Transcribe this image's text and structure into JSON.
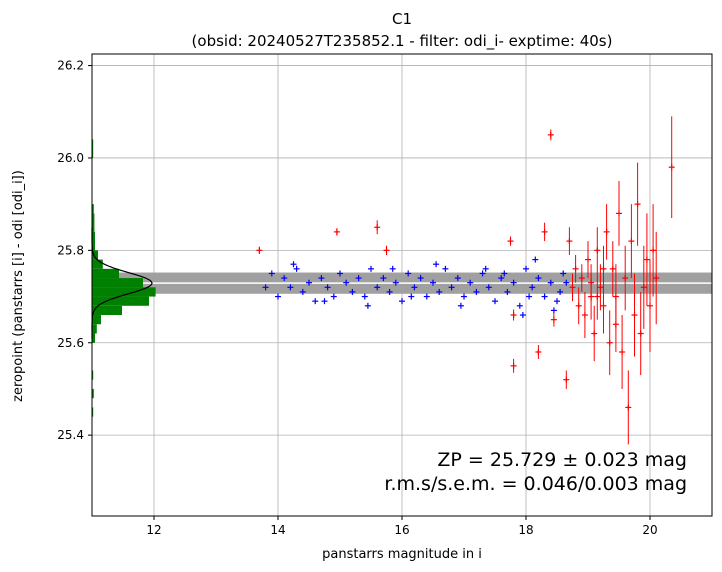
{
  "chart_data": {
    "type": "scatter",
    "title": "C1",
    "subtitle": "(obsid: 20240527T235852.1 - filter: odi_i- exptime: 40s)",
    "xlabel": "panstarrs magnitude in i",
    "ylabel": "zeropoint (panstarrs [i] - odi [odi_i])",
    "xlim": [
      11.0,
      21.0
    ],
    "ylim": [
      25.225,
      26.225
    ],
    "xticks": [
      "12",
      "14",
      "16",
      "18",
      "20"
    ],
    "yticks": [
      "25.4",
      "25.6",
      "25.8",
      "26.0",
      "26.2"
    ],
    "grid": true,
    "zp": 25.729,
    "zp_err": 0.023,
    "annotation_line1": "ZP = 25.729 ± 0.023 mag",
    "annotation_line2": "r.m.s/s.e.m. = 0.046/0.003 mag",
    "band": {
      "y_low": 25.706,
      "y_high": 25.752,
      "color": "#a0a0a0"
    },
    "series": [
      {
        "color": "#0000ff",
        "marker": "plus",
        "points": [
          [
            13.8,
            25.72
          ],
          [
            13.9,
            25.75
          ],
          [
            14.0,
            25.7
          ],
          [
            14.1,
            25.74
          ],
          [
            14.2,
            25.72
          ],
          [
            14.3,
            25.76
          ],
          [
            14.4,
            25.71
          ],
          [
            14.5,
            25.73
          ],
          [
            14.6,
            25.69
          ],
          [
            14.7,
            25.74
          ],
          [
            14.8,
            25.72
          ],
          [
            14.9,
            25.7
          ],
          [
            15.0,
            25.75
          ],
          [
            15.1,
            25.73
          ],
          [
            15.2,
            25.71
          ],
          [
            15.3,
            25.74
          ],
          [
            15.4,
            25.7
          ],
          [
            15.5,
            25.76
          ],
          [
            15.6,
            25.72
          ],
          [
            15.7,
            25.74
          ],
          [
            15.8,
            25.71
          ],
          [
            15.9,
            25.73
          ],
          [
            16.0,
            25.69
          ],
          [
            16.1,
            25.75
          ],
          [
            16.2,
            25.72
          ],
          [
            16.3,
            25.74
          ],
          [
            16.4,
            25.7
          ],
          [
            16.5,
            25.73
          ],
          [
            16.6,
            25.71
          ],
          [
            16.7,
            25.76
          ],
          [
            16.8,
            25.72
          ],
          [
            16.9,
            25.74
          ],
          [
            17.0,
            25.7
          ],
          [
            17.1,
            25.73
          ],
          [
            17.2,
            25.71
          ],
          [
            17.3,
            25.75
          ],
          [
            17.4,
            25.72
          ],
          [
            17.5,
            25.69
          ],
          [
            17.6,
            25.74
          ],
          [
            17.7,
            25.71
          ],
          [
            17.8,
            25.73
          ],
          [
            17.9,
            25.68
          ],
          [
            18.0,
            25.76
          ],
          [
            18.1,
            25.72
          ],
          [
            18.2,
            25.74
          ],
          [
            18.3,
            25.7
          ],
          [
            18.4,
            25.73
          ],
          [
            18.5,
            25.69
          ],
          [
            18.6,
            25.75
          ],
          [
            14.25,
            25.77
          ],
          [
            15.85,
            25.76
          ],
          [
            16.55,
            25.77
          ],
          [
            17.35,
            25.76
          ],
          [
            18.15,
            25.78
          ],
          [
            18.45,
            25.67
          ],
          [
            17.95,
            25.66
          ],
          [
            16.95,
            25.68
          ],
          [
            15.45,
            25.68
          ],
          [
            14.75,
            25.69
          ],
          [
            18.55,
            25.71
          ],
          [
            18.65,
            25.73
          ],
          [
            18.05,
            25.7
          ],
          [
            17.65,
            25.75
          ],
          [
            16.15,
            25.7
          ]
        ]
      },
      {
        "color": "#ff0000",
        "marker": "plus-errorbar",
        "points": [
          [
            13.7,
            25.8,
            0.008
          ],
          [
            14.95,
            25.84,
            0.008
          ],
          [
            15.6,
            25.85,
            0.015
          ],
          [
            15.75,
            25.8,
            0.01
          ],
          [
            17.75,
            25.82,
            0.01
          ],
          [
            18.4,
            26.05,
            0.012
          ],
          [
            18.3,
            25.84,
            0.02
          ],
          [
            18.2,
            25.58,
            0.015
          ],
          [
            17.8,
            25.55,
            0.015
          ],
          [
            17.8,
            25.66,
            0.012
          ],
          [
            18.45,
            25.65,
            0.015
          ],
          [
            18.65,
            25.52,
            0.02
          ],
          [
            18.7,
            25.82,
            0.03
          ],
          [
            18.75,
            25.72,
            0.03
          ],
          [
            18.8,
            25.76,
            0.03
          ],
          [
            18.85,
            25.68,
            0.04
          ],
          [
            18.9,
            25.74,
            0.03
          ],
          [
            18.95,
            25.66,
            0.05
          ],
          [
            19.0,
            25.78,
            0.04
          ],
          [
            19.05,
            25.7,
            0.05
          ],
          [
            19.1,
            25.62,
            0.06
          ],
          [
            19.15,
            25.8,
            0.05
          ],
          [
            19.2,
            25.72,
            0.05
          ],
          [
            19.25,
            25.68,
            0.06
          ],
          [
            19.3,
            25.84,
            0.06
          ],
          [
            19.35,
            25.6,
            0.07
          ],
          [
            19.4,
            25.76,
            0.06
          ],
          [
            19.45,
            25.7,
            0.07
          ],
          [
            19.5,
            25.88,
            0.07
          ],
          [
            19.55,
            25.58,
            0.08
          ],
          [
            19.6,
            25.74,
            0.07
          ],
          [
            19.65,
            25.46,
            0.08
          ],
          [
            19.7,
            25.82,
            0.08
          ],
          [
            19.75,
            25.66,
            0.09
          ],
          [
            19.8,
            25.9,
            0.09
          ],
          [
            19.85,
            25.62,
            0.09
          ],
          [
            19.9,
            25.72,
            0.09
          ],
          [
            19.95,
            25.78,
            0.1
          ],
          [
            20.0,
            25.68,
            0.1
          ],
          [
            20.05,
            25.8,
            0.1
          ],
          [
            20.1,
            25.74,
            0.1
          ],
          [
            20.35,
            25.98,
            0.11
          ],
          [
            19.15,
            25.7,
            0.05
          ],
          [
            19.45,
            25.64,
            0.06
          ],
          [
            19.25,
            25.76,
            0.05
          ],
          [
            19.05,
            25.73,
            0.04
          ]
        ]
      }
    ],
    "histogram": {
      "color": "#008000",
      "bins": [
        [
          25.44,
          25.46,
          0.02
        ],
        [
          25.48,
          25.5,
          0.03
        ],
        [
          25.52,
          25.54,
          0.02
        ],
        [
          25.6,
          25.62,
          0.05
        ],
        [
          25.62,
          25.64,
          0.08
        ],
        [
          25.64,
          25.66,
          0.15
        ],
        [
          25.66,
          25.68,
          0.5
        ],
        [
          25.68,
          25.7,
          0.95
        ],
        [
          25.7,
          25.72,
          1.06
        ],
        [
          25.72,
          25.74,
          0.85
        ],
        [
          25.74,
          25.76,
          0.45
        ],
        [
          25.76,
          25.78,
          0.18
        ],
        [
          25.78,
          25.8,
          0.1
        ],
        [
          25.8,
          25.84,
          0.05
        ],
        [
          25.84,
          25.88,
          0.04
        ],
        [
          25.88,
          25.9,
          0.03
        ],
        [
          26.0,
          26.04,
          0.02
        ]
      ],
      "gauss_peak_x": 1.0
    }
  }
}
